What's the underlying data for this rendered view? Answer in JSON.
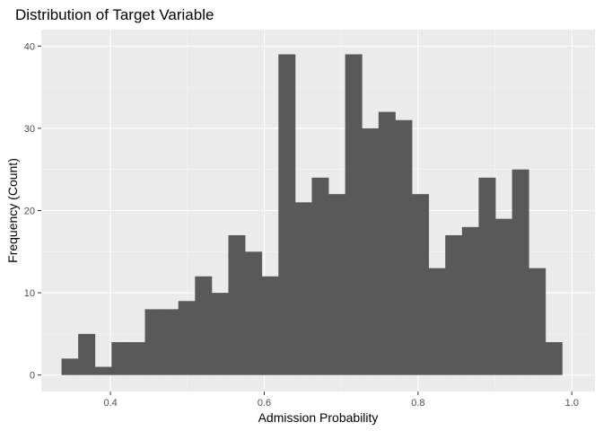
{
  "chart_data": {
    "type": "bar",
    "title": "Distribution of Target Variable",
    "xlabel": "Admission Probability",
    "ylabel": "Frequency (Count)",
    "xlim": [
      0.31,
      1.03
    ],
    "ylim": [
      -2,
      42
    ],
    "x_ticks": [
      0.4,
      0.6,
      0.8,
      1.0
    ],
    "x_tick_labels": [
      "0.4",
      "0.6",
      "0.8",
      "1.0"
    ],
    "y_ticks": [
      0,
      10,
      20,
      30,
      40
    ],
    "y_tick_labels": [
      "0",
      "10",
      "20",
      "30",
      "40"
    ],
    "bin_start": 0.3363,
    "bin_width": 0.0217,
    "values": [
      2,
      5,
      1,
      4,
      4,
      8,
      8,
      9,
      12,
      10,
      17,
      15,
      12,
      39,
      21,
      24,
      22,
      39,
      30,
      32,
      31,
      22,
      13,
      17,
      18,
      24,
      19,
      25,
      13,
      4
    ],
    "grid": true,
    "legend": "none",
    "colors": {
      "bar": "#595959",
      "panel": "#ebebeb",
      "grid_major": "#ffffff",
      "grid_minor": "#f5f5f5"
    }
  }
}
